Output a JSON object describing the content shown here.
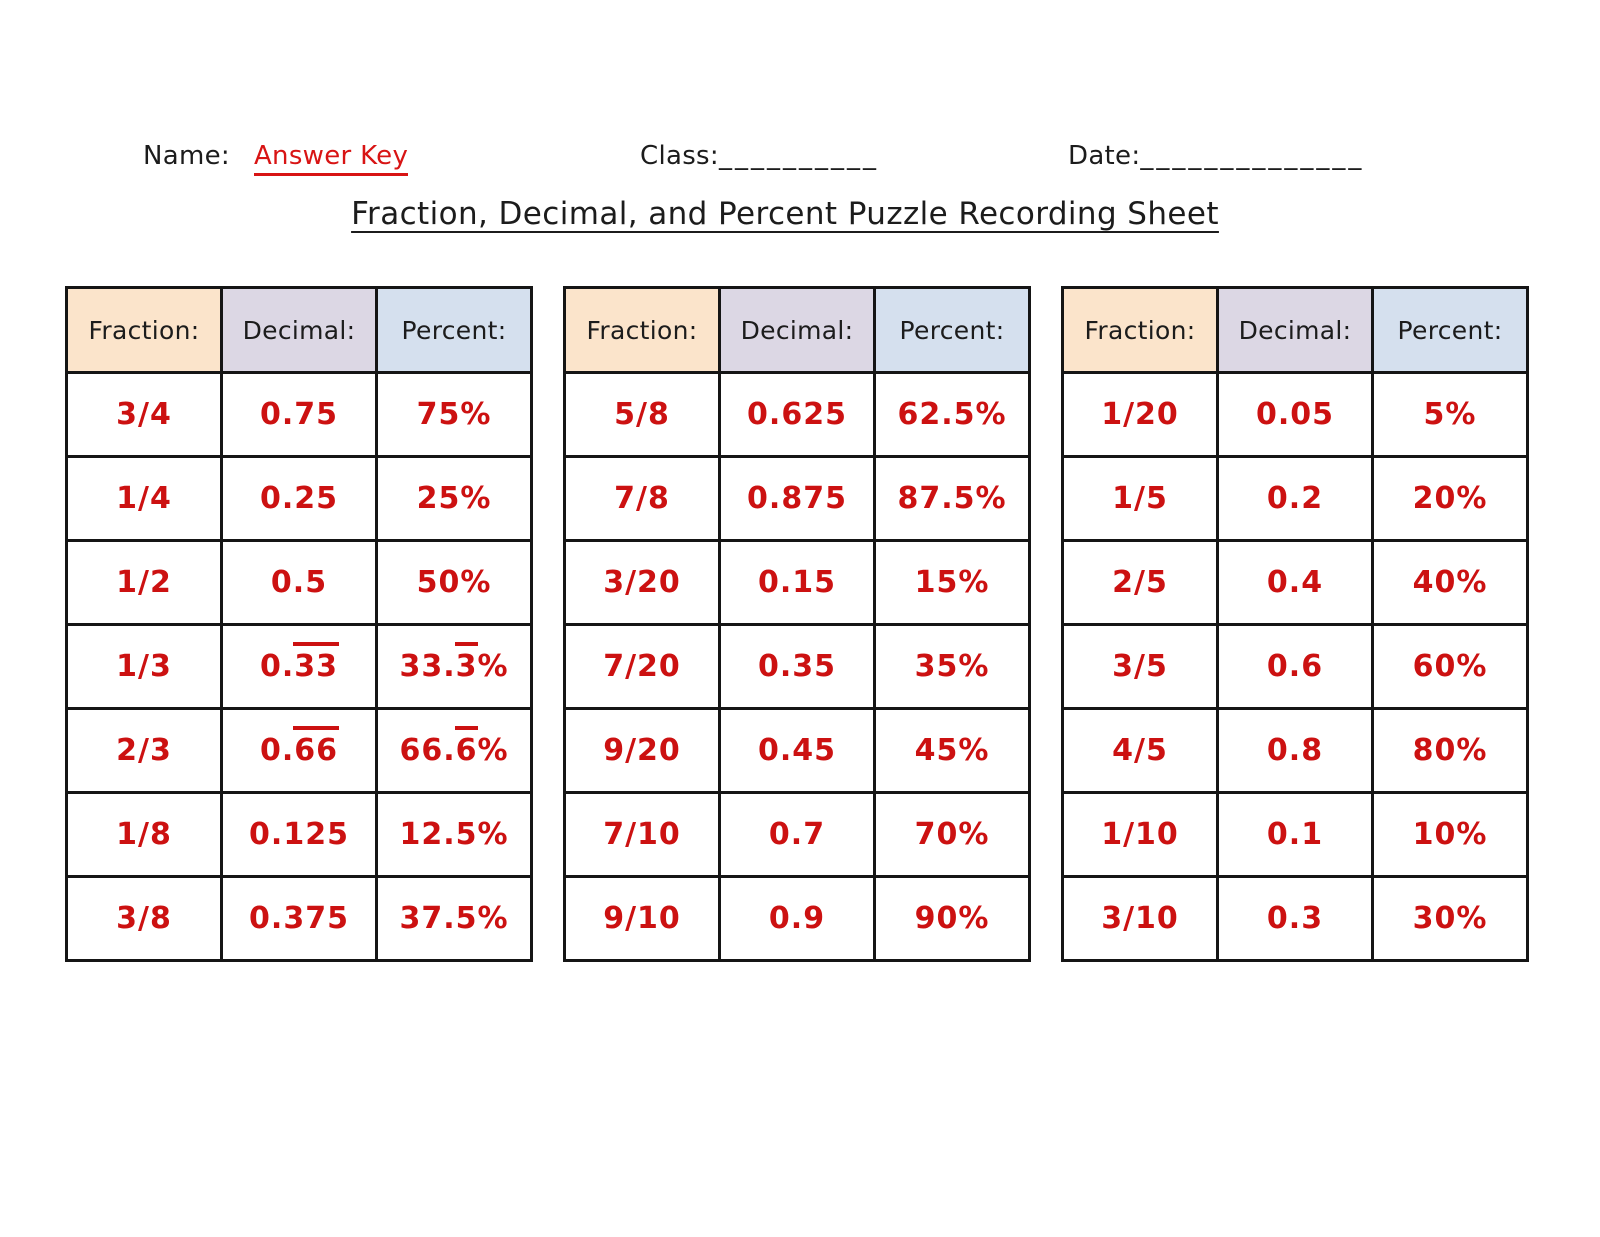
{
  "header": {
    "name_label": "Name:",
    "name_value": "Answer Key",
    "class_label": "Class:",
    "class_blank": "__________",
    "date_label": "Date:",
    "date_blank": "______________"
  },
  "title": "Fraction, Decimal, and Percent Puzzle Recording Sheet",
  "colors": {
    "value_red": "#cc1111",
    "answer_red": "#d81414",
    "border_dark": "#151515",
    "fraction_bg": "#fbe4cb",
    "decimal_bg": "#dcd7e4",
    "percent_bg": "#d5e0ee"
  },
  "column_keys": [
    "fraction",
    "decimal",
    "percent"
  ],
  "tables": [
    {
      "columns": [
        "Fraction:",
        "Decimal:",
        "Percent:"
      ],
      "rows": [
        {
          "fraction": "3/4",
          "decimal": [
            "0.75"
          ],
          "percent": [
            "75%"
          ]
        },
        {
          "fraction": "1/4",
          "decimal": [
            "0.25"
          ],
          "percent": [
            "25%"
          ]
        },
        {
          "fraction": "1/2",
          "decimal": [
            "0.5"
          ],
          "percent": [
            "50%"
          ]
        },
        {
          "fraction": "1/3",
          "decimal": [
            "0.",
            {
              "overline": "33"
            }
          ],
          "percent": [
            "33.",
            {
              "overline": "3"
            },
            "%"
          ]
        },
        {
          "fraction": "2/3",
          "decimal": [
            "0.",
            {
              "overline": "66"
            }
          ],
          "percent": [
            "66.",
            {
              "overline": "6"
            },
            "%"
          ]
        },
        {
          "fraction": "1/8",
          "decimal": [
            "0.125"
          ],
          "percent": [
            "12.5%"
          ]
        },
        {
          "fraction": "3/8",
          "decimal": [
            "0.375"
          ],
          "percent": [
            "37.5%"
          ]
        }
      ]
    },
    {
      "columns": [
        "Fraction:",
        "Decimal:",
        "Percent:"
      ],
      "rows": [
        {
          "fraction": "5/8",
          "decimal": [
            "0.625"
          ],
          "percent": [
            "62.5%"
          ]
        },
        {
          "fraction": "7/8",
          "decimal": [
            "0.875"
          ],
          "percent": [
            "87.5%"
          ]
        },
        {
          "fraction": "3/20",
          "decimal": [
            "0.15"
          ],
          "percent": [
            "15%"
          ]
        },
        {
          "fraction": "7/20",
          "decimal": [
            "0.35"
          ],
          "percent": [
            "35%"
          ]
        },
        {
          "fraction": "9/20",
          "decimal": [
            "0.45"
          ],
          "percent": [
            "45%"
          ]
        },
        {
          "fraction": "7/10",
          "decimal": [
            "0.7"
          ],
          "percent": [
            "70%"
          ]
        },
        {
          "fraction": "9/10",
          "decimal": [
            "0.9"
          ],
          "percent": [
            "90%"
          ]
        }
      ]
    },
    {
      "columns": [
        "Fraction:",
        "Decimal:",
        "Percent:"
      ],
      "rows": [
        {
          "fraction": "1/20",
          "decimal": [
            "0.05"
          ],
          "percent": [
            "5%"
          ]
        },
        {
          "fraction": "1/5",
          "decimal": [
            "0.2"
          ],
          "percent": [
            "20%"
          ]
        },
        {
          "fraction": "2/5",
          "decimal": [
            "0.4"
          ],
          "percent": [
            "40%"
          ]
        },
        {
          "fraction": "3/5",
          "decimal": [
            "0.6"
          ],
          "percent": [
            "60%"
          ]
        },
        {
          "fraction": "4/5",
          "decimal": [
            "0.8"
          ],
          "percent": [
            "80%"
          ]
        },
        {
          "fraction": "1/10",
          "decimal": [
            "0.1"
          ],
          "percent": [
            "10%"
          ]
        },
        {
          "fraction": "3/10",
          "decimal": [
            "0.3"
          ],
          "percent": [
            "30%"
          ]
        }
      ]
    }
  ]
}
